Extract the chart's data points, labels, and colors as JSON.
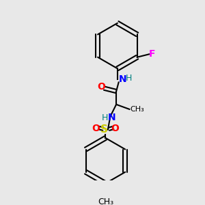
{
  "background_color": "#e8e8e8",
  "bond_color": "#000000",
  "atom_colors": {
    "O": "#ff0000",
    "N": "#0000ff",
    "H": "#008080",
    "F": "#ff00ff",
    "S": "#cccc00",
    "C": "#000000"
  },
  "figsize": [
    3.0,
    3.0
  ],
  "dpi": 100
}
